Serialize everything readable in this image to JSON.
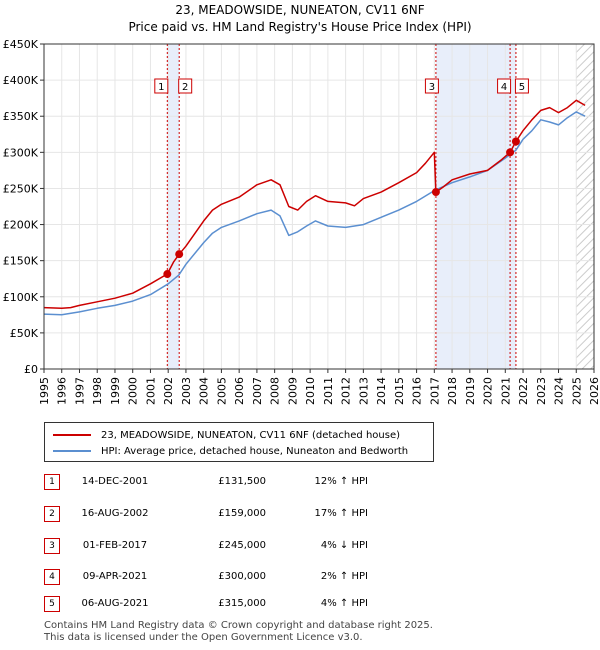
{
  "title_line1": "23, MEADOWSIDE, NUNEATON, CV11 6NF",
  "title_line2": "Price paid vs. HM Land Registry's House Price Index (HPI)",
  "chart_data": {
    "type": "line",
    "xlim": [
      1995,
      2026
    ],
    "ylim": [
      0,
      450000
    ],
    "y_ticks": [
      0,
      50000,
      100000,
      150000,
      200000,
      250000,
      300000,
      350000,
      400000,
      450000
    ],
    "y_tick_labels": [
      "£0",
      "£50K",
      "£100K",
      "£150K",
      "£200K",
      "£250K",
      "£300K",
      "£350K",
      "£400K",
      "£450K"
    ],
    "x_ticks": [
      1995,
      1996,
      1997,
      1998,
      1999,
      2000,
      2001,
      2002,
      2003,
      2004,
      2005,
      2006,
      2007,
      2008,
      2009,
      2010,
      2011,
      2012,
      2013,
      2014,
      2015,
      2016,
      2017,
      2018,
      2019,
      2020,
      2021,
      2022,
      2023,
      2024,
      2025,
      2026
    ],
    "x_tick_labels": [
      "1995",
      "1996",
      "1997",
      "1998",
      "1999",
      "2000",
      "2001",
      "2002",
      "2003",
      "2004",
      "2005",
      "2006",
      "2007",
      "2008",
      "2009",
      "2010",
      "2011",
      "2012",
      "2013",
      "2014",
      "2015",
      "2016",
      "2017",
      "2018",
      "2019",
      "2020",
      "2021",
      "2022",
      "2023",
      "2024",
      "2025",
      "2026"
    ],
    "grid": true,
    "series": [
      {
        "name": "23, MEADOWSIDE, NUNEATON, CV11 6NF (detached house)",
        "color": "#cc0000",
        "points": [
          [
            1995.0,
            85000
          ],
          [
            1996.0,
            84000
          ],
          [
            1996.5,
            85000
          ],
          [
            1997.0,
            88000
          ],
          [
            1998.0,
            93000
          ],
          [
            1999.0,
            98000
          ],
          [
            2000.0,
            105000
          ],
          [
            2001.0,
            118000
          ],
          [
            2001.95,
            131500
          ],
          [
            2002.3,
            148000
          ],
          [
            2002.62,
            159000
          ],
          [
            2003.0,
            170000
          ],
          [
            2004.0,
            205000
          ],
          [
            2004.5,
            220000
          ],
          [
            2005.0,
            228000
          ],
          [
            2006.0,
            238000
          ],
          [
            2007.0,
            255000
          ],
          [
            2007.8,
            262000
          ],
          [
            2008.3,
            255000
          ],
          [
            2008.8,
            225000
          ],
          [
            2009.3,
            220000
          ],
          [
            2009.8,
            232000
          ],
          [
            2010.3,
            240000
          ],
          [
            2011.0,
            232000
          ],
          [
            2012.0,
            230000
          ],
          [
            2012.5,
            226000
          ],
          [
            2013.0,
            236000
          ],
          [
            2014.0,
            245000
          ],
          [
            2015.0,
            258000
          ],
          [
            2016.0,
            272000
          ],
          [
            2016.5,
            285000
          ],
          [
            2017.0,
            300000
          ],
          [
            2017.09,
            245000
          ],
          [
            2017.5,
            252000
          ],
          [
            2018.0,
            262000
          ],
          [
            2019.0,
            270000
          ],
          [
            2020.0,
            275000
          ],
          [
            2020.8,
            290000
          ],
          [
            2021.27,
            300000
          ],
          [
            2021.6,
            315000
          ],
          [
            2022.0,
            330000
          ],
          [
            2022.5,
            345000
          ],
          [
            2023.0,
            358000
          ],
          [
            2023.5,
            362000
          ],
          [
            2024.0,
            355000
          ],
          [
            2024.5,
            362000
          ],
          [
            2025.0,
            372000
          ],
          [
            2025.5,
            365000
          ]
        ]
      },
      {
        "name": "HPI: Average price, detached house, Nuneaton and Bedworth",
        "color": "#5b8fd0",
        "points": [
          [
            1995.0,
            76000
          ],
          [
            1996.0,
            75000
          ],
          [
            1997.0,
            79000
          ],
          [
            1998.0,
            84000
          ],
          [
            1999.0,
            88000
          ],
          [
            2000.0,
            94000
          ],
          [
            2001.0,
            103000
          ],
          [
            2002.0,
            118000
          ],
          [
            2002.6,
            130000
          ],
          [
            2003.0,
            145000
          ],
          [
            2004.0,
            175000
          ],
          [
            2004.5,
            188000
          ],
          [
            2005.0,
            196000
          ],
          [
            2006.0,
            205000
          ],
          [
            2007.0,
            215000
          ],
          [
            2007.8,
            220000
          ],
          [
            2008.3,
            212000
          ],
          [
            2008.8,
            185000
          ],
          [
            2009.3,
            190000
          ],
          [
            2009.8,
            198000
          ],
          [
            2010.3,
            205000
          ],
          [
            2011.0,
            198000
          ],
          [
            2012.0,
            196000
          ],
          [
            2013.0,
            200000
          ],
          [
            2014.0,
            210000
          ],
          [
            2015.0,
            220000
          ],
          [
            2016.0,
            232000
          ],
          [
            2017.0,
            247000
          ],
          [
            2018.0,
            258000
          ],
          [
            2019.0,
            266000
          ],
          [
            2020.0,
            275000
          ],
          [
            2021.0,
            292000
          ],
          [
            2021.6,
            303000
          ],
          [
            2022.0,
            318000
          ],
          [
            2022.5,
            330000
          ],
          [
            2023.0,
            345000
          ],
          [
            2023.5,
            342000
          ],
          [
            2024.0,
            338000
          ],
          [
            2024.5,
            348000
          ],
          [
            2025.0,
            356000
          ],
          [
            2025.5,
            350000
          ]
        ]
      }
    ],
    "sales": [
      {
        "id": "1",
        "x": 2001.95,
        "price": 131500
      },
      {
        "id": "2",
        "x": 2002.62,
        "price": 159000
      },
      {
        "id": "3",
        "x": 2017.09,
        "price": 245000
      },
      {
        "id": "4",
        "x": 2021.27,
        "price": 300000
      },
      {
        "id": "5",
        "x": 2021.6,
        "price": 315000
      }
    ],
    "shaded_ranges": [
      [
        2001.95,
        2002.62
      ],
      [
        2017.09,
        2021.6
      ]
    ],
    "hatched_from": 2025.0
  },
  "legend": {
    "property_label": "23, MEADOWSIDE, NUNEATON, CV11 6NF (detached house)",
    "hpi_label": "HPI: Average price, detached house, Nuneaton and Bedworth"
  },
  "sales_table": [
    {
      "num": "1",
      "date": "14-DEC-2001",
      "price": "£131,500",
      "hpi": "12% ↑ HPI"
    },
    {
      "num": "2",
      "date": "16-AUG-2002",
      "price": "£159,000",
      "hpi": "17% ↑ HPI"
    },
    {
      "num": "3",
      "date": "01-FEB-2017",
      "price": "£245,000",
      "hpi": "4% ↓ HPI"
    },
    {
      "num": "4",
      "date": "09-APR-2021",
      "price": "£300,000",
      "hpi": "2% ↑ HPI"
    },
    {
      "num": "5",
      "date": "06-AUG-2021",
      "price": "£315,000",
      "hpi": "4% ↑ HPI"
    }
  ],
  "footer_line1": "Contains HM Land Registry data © Crown copyright and database right 2025.",
  "footer_line2": "This data is licensed under the Open Government Licence v3.0."
}
